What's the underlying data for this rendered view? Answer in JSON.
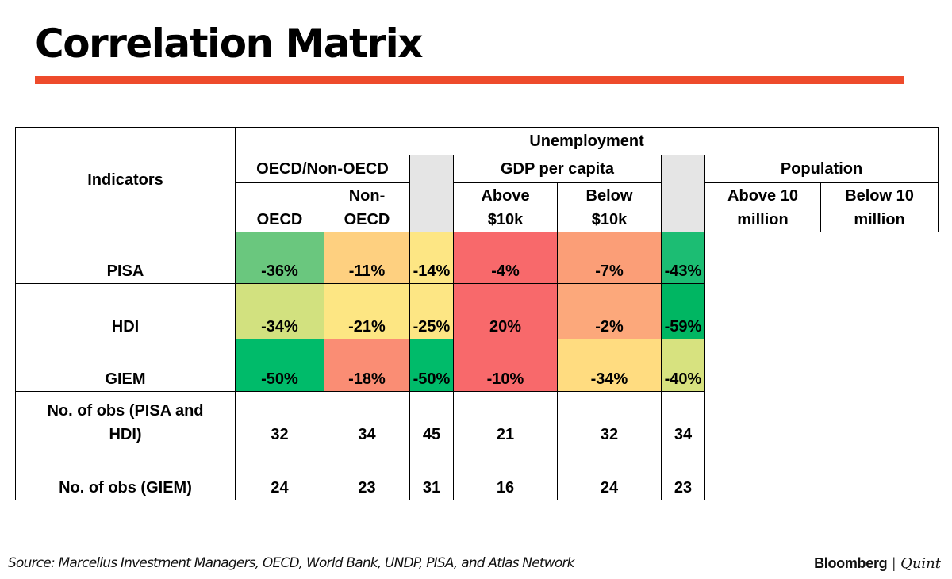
{
  "title": "Correlation Matrix",
  "chart_data": {
    "type": "table",
    "title": "Correlation Matrix",
    "row_header_label": "Indicators",
    "top_header": "Unemployment",
    "groups": [
      {
        "name": "OECD/Non-OECD",
        "columns": [
          [
            "OECD"
          ],
          [
            "Non-",
            "OECD"
          ]
        ]
      },
      {
        "name": "GDP per capita",
        "columns": [
          [
            "Above",
            "$10k"
          ],
          [
            "Below",
            "$10k"
          ]
        ]
      },
      {
        "name": "Population",
        "columns": [
          [
            "Above 10",
            "million"
          ],
          [
            "Below 10",
            "million"
          ]
        ]
      }
    ],
    "rows": [
      {
        "label": [
          "PISA"
        ],
        "values": [
          "-36%",
          "-11%",
          "-14%",
          "-4%",
          "-7%",
          "-43%"
        ],
        "colors": [
          "#6ac77e",
          "#fed080",
          "#fde684",
          "#f8696b",
          "#fb9e77",
          "#1cbd73"
        ]
      },
      {
        "label": [
          "HDI"
        ],
        "values": [
          "-34%",
          "-21%",
          "-25%",
          "20%",
          "-2%",
          "-59%"
        ],
        "colors": [
          "#d2e17f",
          "#fde683",
          "#fde684",
          "#f8696b",
          "#fca87b",
          "#00b662"
        ]
      },
      {
        "label": [
          "GIEM"
        ],
        "values": [
          "-50%",
          "-18%",
          "-50%",
          "-10%",
          "-34%",
          "-40%"
        ],
        "colors": [
          "#00bb6a",
          "#fa8d74",
          "#00bb6a",
          "#f8696b",
          "#ffdc80",
          "#d7e27f"
        ]
      },
      {
        "label": [
          "No. of obs (PISA and",
          "HDI)"
        ],
        "values": [
          "32",
          "34",
          "45",
          "21",
          "32",
          "34"
        ]
      },
      {
        "label": [
          "No. of obs (GIEM)"
        ],
        "values": [
          "24",
          "23",
          "31",
          "16",
          "24",
          "23"
        ]
      }
    ]
  },
  "source": "Source: Marcellus Investment Managers, OECD, World Bank, UNDP, PISA, and Atlas Network",
  "logo": {
    "brand": "Bloomberg",
    "separator": "|",
    "brand2": "Quint"
  }
}
